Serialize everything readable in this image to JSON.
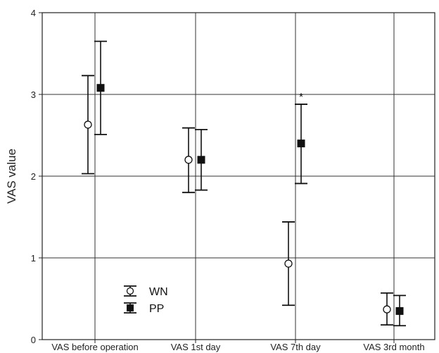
{
  "chart_data": {
    "type": "scatter",
    "categories": [
      "VAS before operation",
      "VAS 1st day",
      "VAS 7th day",
      "VAS 3rd month"
    ],
    "ylabel": "VAS value",
    "xlabel": "",
    "ylim": [
      0,
      4
    ],
    "yticks": [
      "0",
      "1",
      "2",
      "3",
      "4"
    ],
    "grid": true,
    "legend_position": "bottom-left",
    "series": [
      {
        "name": "WN",
        "marker": "open-circle",
        "values": [
          2.63,
          2.2,
          0.93,
          0.37
        ],
        "error_low": [
          2.03,
          1.8,
          0.42,
          0.18
        ],
        "error_high": [
          3.23,
          2.59,
          1.44,
          0.57
        ]
      },
      {
        "name": "PP",
        "marker": "filled-square",
        "values": [
          3.08,
          2.2,
          2.4,
          0.35
        ],
        "error_low": [
          2.51,
          1.83,
          1.91,
          0.17
        ],
        "error_high": [
          3.65,
          2.57,
          2.88,
          0.54
        ]
      }
    ],
    "annotations": [
      {
        "text": "*",
        "category_index": 2,
        "series_index": 1
      }
    ]
  }
}
